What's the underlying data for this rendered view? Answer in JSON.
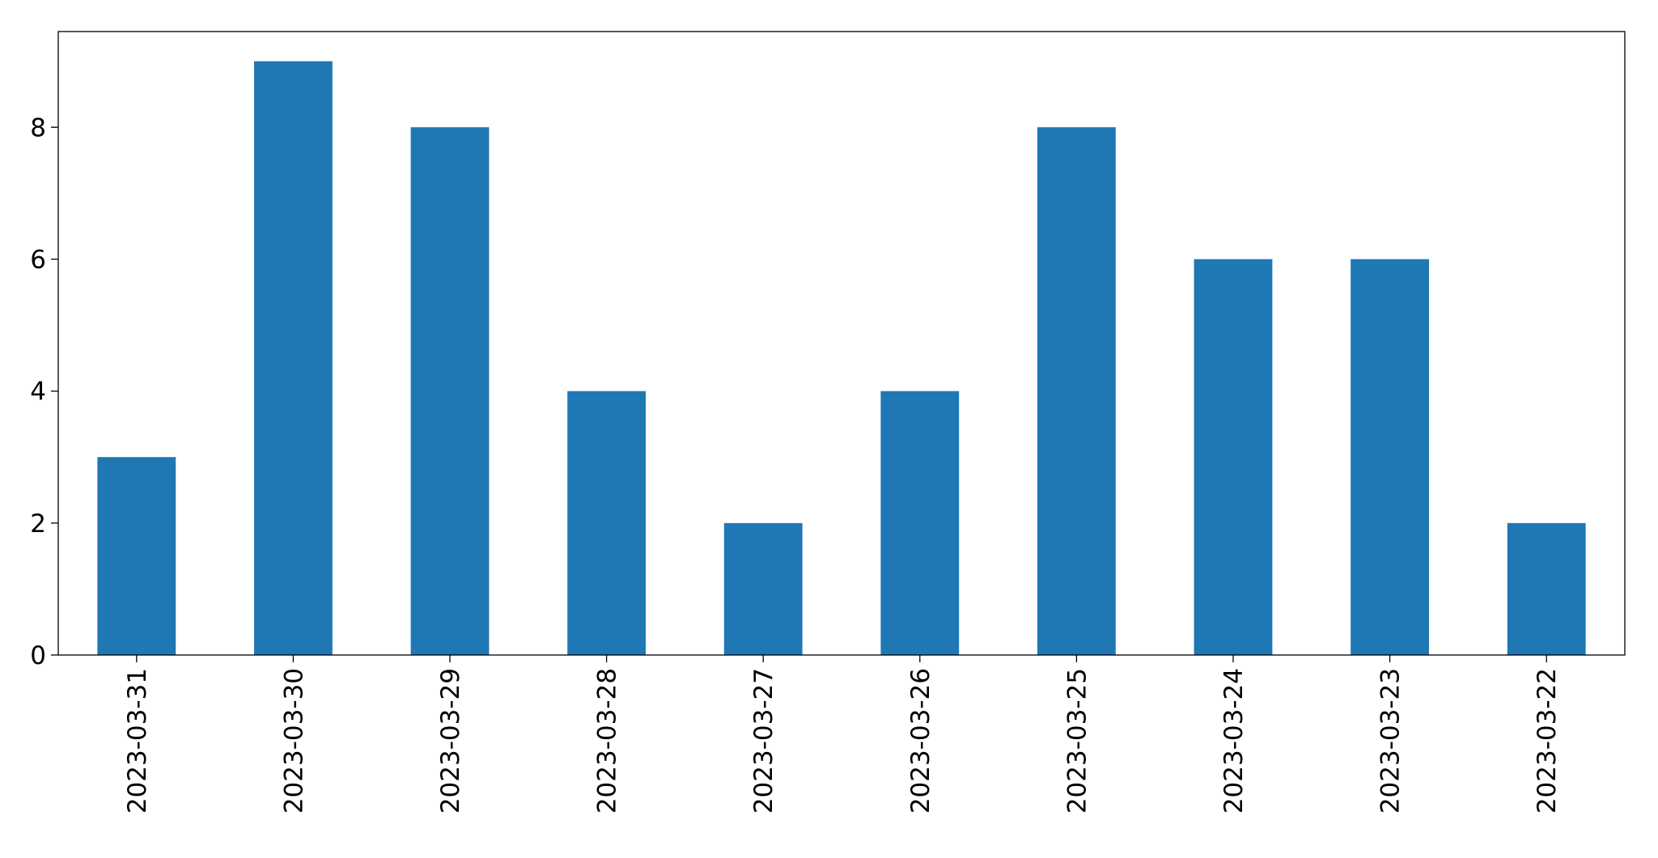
{
  "chart_data": {
    "type": "bar",
    "categories": [
      "2023-03-31",
      "2023-03-30",
      "2023-03-29",
      "2023-03-28",
      "2023-03-27",
      "2023-03-26",
      "2023-03-25",
      "2023-03-24",
      "2023-03-23",
      "2023-03-22"
    ],
    "values": [
      3,
      9,
      8,
      4,
      2,
      4,
      8,
      6,
      6,
      2
    ],
    "color": "#1f77b4",
    "ylim": [
      0,
      9.45
    ],
    "yticks": [
      0,
      2,
      4,
      6,
      8
    ],
    "grid": false
  }
}
